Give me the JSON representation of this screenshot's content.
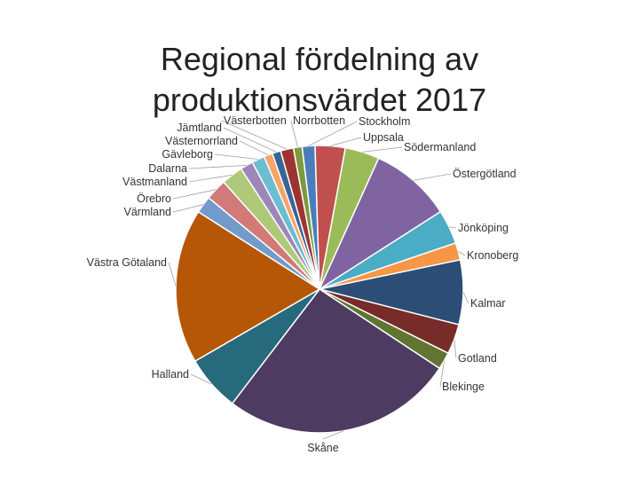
{
  "chart_data": {
    "type": "pie",
    "title_lines": [
      "Regional fördelning av",
      "produktionsvärdet 2017"
    ],
    "start_angle_deg": -7,
    "slices": [
      {
        "name": "Stockholm",
        "value": 1.5,
        "color": "#4a7ebb"
      },
      {
        "name": "Uppsala",
        "value": 3.5,
        "color": "#c0504d"
      },
      {
        "name": "Södermanland",
        "value": 4.0,
        "color": "#9bbb59"
      },
      {
        "name": "Östergötland",
        "value": 9.5,
        "color": "#8064a2"
      },
      {
        "name": "Jönköping",
        "value": 4.0,
        "color": "#4bacc6"
      },
      {
        "name": "Kronoberg",
        "value": 2.0,
        "color": "#f79646"
      },
      {
        "name": "Kalmar",
        "value": 7.5,
        "color": "#2c4d75"
      },
      {
        "name": "Gotland",
        "value": 3.5,
        "color": "#772c2a"
      },
      {
        "name": "Blekinge",
        "value": 2.0,
        "color": "#5f7530"
      },
      {
        "name": "Skåne",
        "value": 27.0,
        "color": "#4d3b62"
      },
      {
        "name": "Halland",
        "value": 6.5,
        "color": "#276a7c"
      },
      {
        "name": "Västra Götaland",
        "value": 18.0,
        "color": "#b65708"
      },
      {
        "name": "Värmland",
        "value": 2.0,
        "color": "#729aca"
      },
      {
        "name": "Örebro",
        "value": 2.5,
        "color": "#d27a78"
      },
      {
        "name": "Västmanland",
        "value": 2.5,
        "color": "#afc97a"
      },
      {
        "name": "Dalarna",
        "value": 1.5,
        "color": "#9d87b9"
      },
      {
        "name": "Gävleborg",
        "value": 1.5,
        "color": "#6dbdd1"
      },
      {
        "name": "Västernorrland",
        "value": 1.0,
        "color": "#f7a468"
      },
      {
        "name": "Jämtland",
        "value": 1.0,
        "color": "#3a6596"
      },
      {
        "name": "Västerbotten",
        "value": 1.5,
        "color": "#9c3532"
      },
      {
        "name": "Norrbotten",
        "value": 1.0,
        "color": "#7d9a3e"
      }
    ]
  }
}
